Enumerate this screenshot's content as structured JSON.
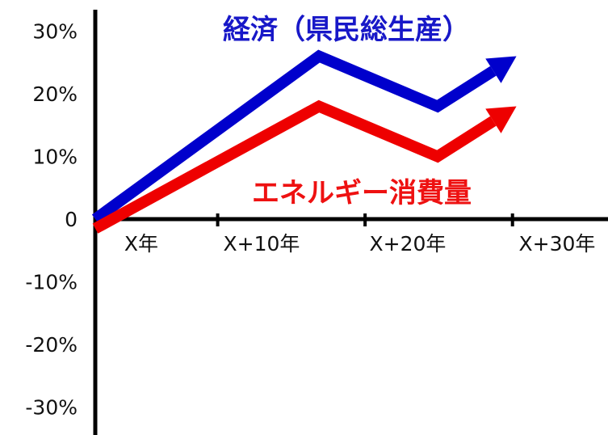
{
  "chart_data": {
    "type": "line",
    "x_labels": [
      "X年",
      "X+10年",
      "X+20年",
      "X+30年"
    ],
    "y_tick_labels": [
      "30%",
      "20%",
      "10%",
      "0",
      "-10%",
      "-20%",
      "-30%"
    ],
    "ylim": [
      -34,
      32
    ],
    "xlim": [
      0,
      42
    ],
    "grid": false,
    "series": [
      {
        "name": "経済（県民総生産）",
        "color": "#0000CC",
        "x": [
          0,
          17,
          26,
          32
        ],
        "y": [
          0,
          26,
          18,
          26
        ]
      },
      {
        "name": "エネルギー消費量",
        "color": "#EE0000",
        "x": [
          0,
          17,
          26,
          32
        ],
        "y": [
          -1.5,
          18,
          10,
          18
        ]
      }
    ]
  }
}
